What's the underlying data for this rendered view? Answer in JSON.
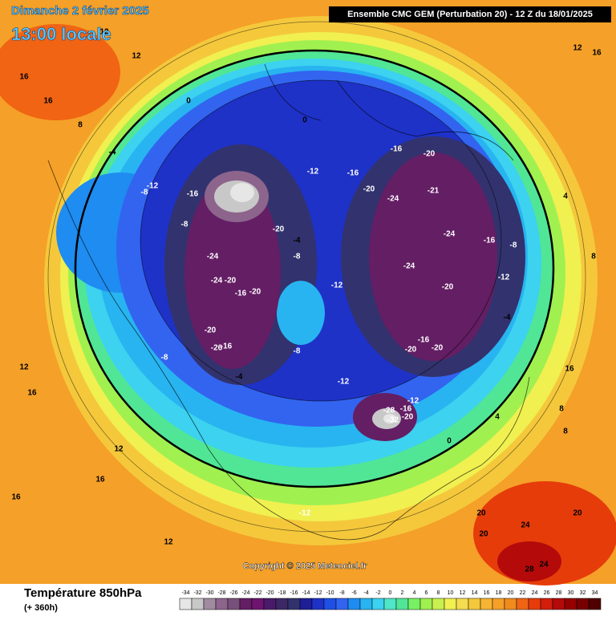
{
  "header": {
    "date": "Dimanche 2 février 2025",
    "time": "13:00 locale",
    "run": "Ensemble CMC GEM  (Perturbation 20)  -  12 Z du 18/01/2025"
  },
  "map_labels": [
    16,
    12,
    12,
    16,
    16,
    8,
    0,
    0,
    -4,
    -8,
    -12,
    -16,
    -20,
    -12,
    -16,
    -4,
    -8,
    -12,
    -8,
    -24,
    -24,
    -20,
    -16,
    -20,
    -20,
    -26,
    -16,
    -4,
    -8,
    -8,
    -12,
    -16,
    -20,
    -24,
    -20,
    -24,
    -20,
    -20,
    -16,
    -20,
    -12,
    -8,
    -4,
    -28,
    -32,
    -16,
    -12,
    -20,
    -24,
    -21,
    -16,
    -12,
    0,
    4,
    8,
    16,
    12,
    16,
    20,
    24,
    28,
    24,
    20,
    20,
    12,
    16,
    12,
    8,
    4,
    8,
    12,
    16
  ],
  "footer": {
    "title": "Température 850hPa",
    "lead": "(+ 360h)",
    "copyright": "Copyright © 2025 Meteociel.fr"
  },
  "legend": {
    "values": [
      -34,
      -32,
      -30,
      -28,
      -26,
      -24,
      -22,
      -20,
      -18,
      -16,
      -14,
      -12,
      -10,
      -8,
      -6,
      -4,
      -2,
      0,
      2,
      4,
      6,
      8,
      10,
      12,
      14,
      16,
      18,
      20,
      22,
      24,
      26,
      28,
      30,
      32,
      34
    ],
    "colors": [
      "#e6e6e6",
      "#c8c8c8",
      "#a08ca0",
      "#8c648c",
      "#78507a",
      "#641e64",
      "#6e1470",
      "#4a1a6a",
      "#3c2864",
      "#32326e",
      "#1e1e96",
      "#1e32c8",
      "#1e50e6",
      "#3264f0",
      "#1e8cf0",
      "#28b4f0",
      "#3cd2f0",
      "#50e6c8",
      "#50e696",
      "#78f064",
      "#a0f050",
      "#c8f050",
      "#f0f050",
      "#f5dc50",
      "#f5c83c",
      "#f5b432",
      "#f5a028",
      "#f08c1e",
      "#f06414",
      "#e63c0a",
      "#d21e0a",
      "#b40a0a",
      "#960000",
      "#780000",
      "#500000"
    ]
  }
}
